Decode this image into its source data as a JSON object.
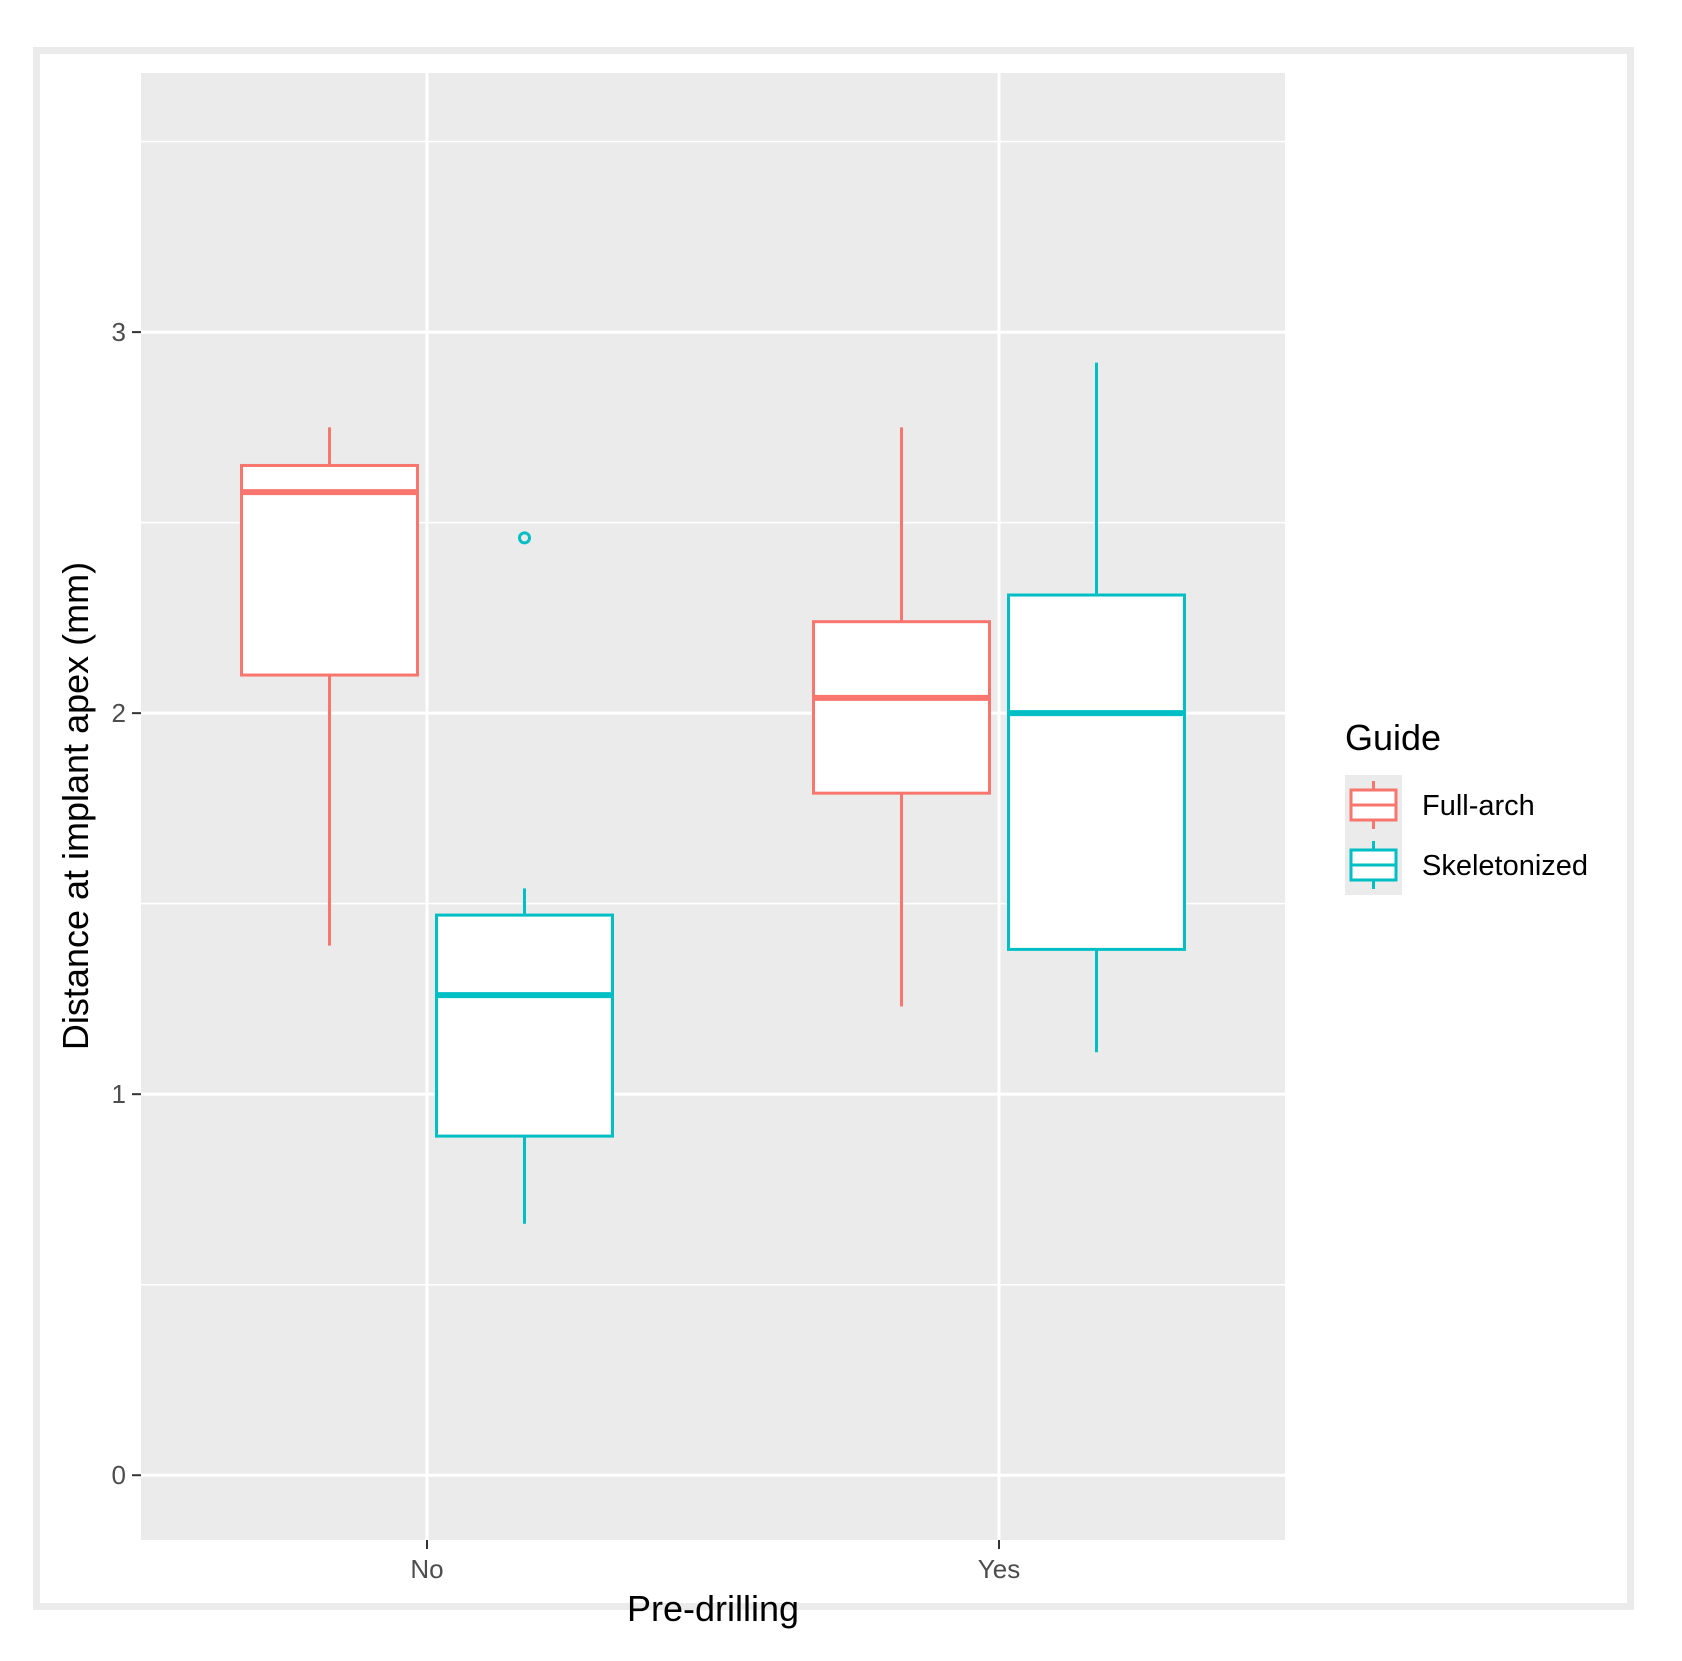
{
  "chart_data": {
    "type": "boxplot",
    "title": "",
    "xlabel": "Pre-drilling",
    "ylabel": "Distance at implant apex (mm)",
    "ylim": [
      -0.17,
      3.68
    ],
    "y_ticks": [
      0,
      1,
      2,
      3
    ],
    "y_tick_labels": [
      "0",
      "1",
      "2",
      "3"
    ],
    "categories": [
      "No",
      "Yes"
    ],
    "grid": true,
    "legend_title": "Guide",
    "legend_position": "right",
    "series": [
      {
        "name": "Full-arch",
        "color": "#F8766D",
        "boxes": [
          {
            "category": "No",
            "whisker_low": 1.39,
            "q1": 2.1,
            "median": 2.58,
            "q3": 2.65,
            "whisker_high": 2.75,
            "outliers": []
          },
          {
            "category": "Yes",
            "whisker_low": 1.23,
            "q1": 1.79,
            "median": 2.04,
            "q3": 2.24,
            "whisker_high": 2.75,
            "outliers": []
          }
        ]
      },
      {
        "name": "Skeletonized",
        "color": "#00BFC4",
        "boxes": [
          {
            "category": "No",
            "whisker_low": 0.66,
            "q1": 0.89,
            "median": 1.26,
            "q3": 1.47,
            "whisker_high": 1.54,
            "outliers": [
              2.46
            ]
          },
          {
            "category": "Yes",
            "whisker_low": 1.11,
            "q1": 1.38,
            "median": 2.0,
            "q3": 2.31,
            "whisker_high": 2.92,
            "outliers": []
          }
        ]
      }
    ]
  }
}
